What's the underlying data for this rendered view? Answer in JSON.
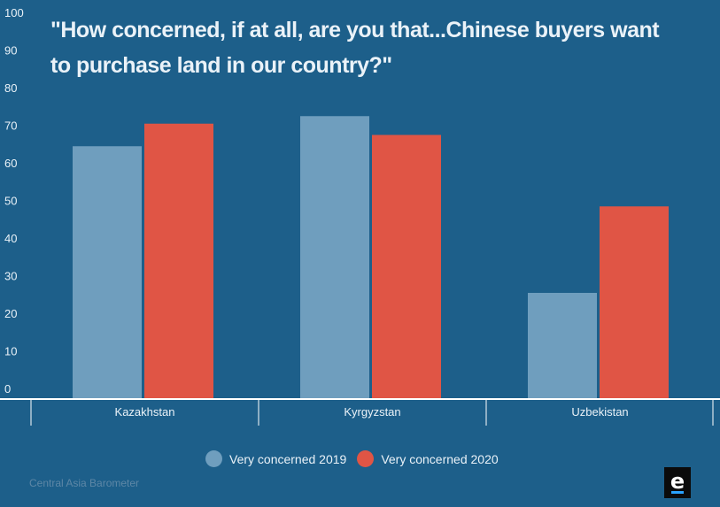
{
  "chart_data": {
    "type": "bar",
    "title": "\"How concerned, if at all, are you that...Chinese buyers want to purchase land in our country?\"",
    "categories": [
      "Kazakhstan",
      "Kyrgyzstan",
      "Uzbekistan"
    ],
    "series": [
      {
        "name": "Very concerned 2019",
        "values": [
          67,
          75,
          28
        ],
        "color": "#6f9ebe"
      },
      {
        "name": "Very concerned 2020",
        "values": [
          73,
          70,
          51
        ],
        "color": "#e05545"
      }
    ],
    "ylim": [
      0,
      100
    ],
    "yticks": [
      0,
      10,
      20,
      30,
      40,
      50,
      60,
      70,
      80,
      90,
      100
    ],
    "xlabel": "",
    "ylabel": "",
    "grid": false,
    "legend_position": "bottom-center"
  },
  "source": "Central Asia Barometer",
  "logo_letter": "e",
  "colors": {
    "background": "#1d5f8a",
    "text": "#eaf2f8",
    "axis": "#ffffff",
    "logo_accent": "#2aa3ff"
  }
}
